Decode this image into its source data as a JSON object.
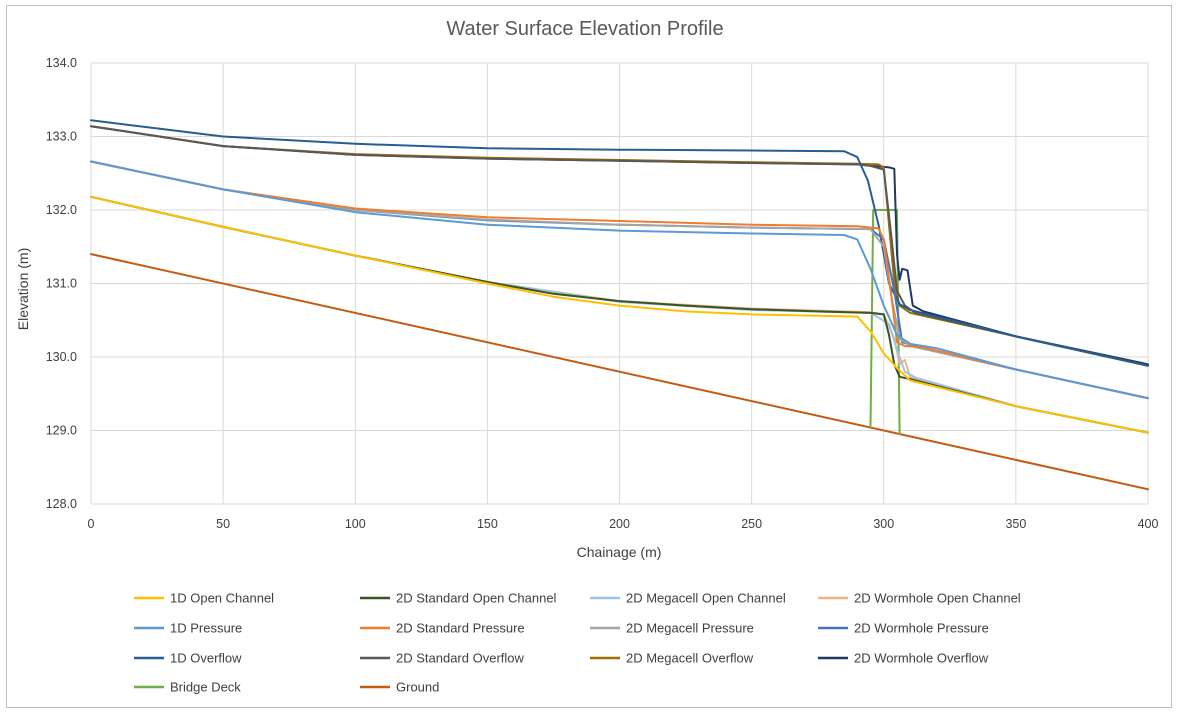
{
  "chart_data": {
    "type": "line",
    "title": "Water Surface Elevation Profile",
    "xlabel": "Chainage (m)",
    "ylabel": "Elevation (m)",
    "xlim": [
      0,
      400
    ],
    "ylim": [
      128.0,
      134.0
    ],
    "x_ticks": [
      "0",
      "50",
      "100",
      "150",
      "200",
      "250",
      "300",
      "350",
      "400"
    ],
    "y_ticks": [
      "128.0",
      "129.0",
      "130.0",
      "131.0",
      "132.0",
      "133.0",
      "134.0"
    ],
    "grid": true,
    "legend_position": "bottom",
    "series": [
      {
        "name": "1D Open Channel",
        "color": "#FFC000",
        "points": [
          [
            0,
            132.18
          ],
          [
            50,
            131.77
          ],
          [
            100,
            131.38
          ],
          [
            150,
            131.0
          ],
          [
            175,
            130.82
          ],
          [
            200,
            130.7
          ],
          [
            225,
            130.62
          ],
          [
            250,
            130.58
          ],
          [
            275,
            130.56
          ],
          [
            290,
            130.55
          ],
          [
            295,
            130.35
          ],
          [
            300,
            130.05
          ],
          [
            305,
            129.85
          ],
          [
            310,
            129.68
          ],
          [
            350,
            129.33
          ],
          [
            400,
            128.97
          ]
        ]
      },
      {
        "name": "2D Standard Open Channel",
        "color": "#375623",
        "points": [
          [
            0,
            132.18
          ],
          [
            50,
            131.77
          ],
          [
            100,
            131.38
          ],
          [
            150,
            131.02
          ],
          [
            175,
            130.86
          ],
          [
            200,
            130.76
          ],
          [
            225,
            130.7
          ],
          [
            250,
            130.65
          ],
          [
            275,
            130.62
          ],
          [
            295,
            130.6
          ],
          [
            300,
            130.58
          ],
          [
            302,
            130.3
          ],
          [
            304,
            129.9
          ],
          [
            306,
            129.73
          ],
          [
            310,
            129.7
          ],
          [
            350,
            129.33
          ],
          [
            400,
            128.97
          ]
        ]
      },
      {
        "name": "2D Megacell Open Channel",
        "color": "#9DC3E6",
        "points": [
          [
            0,
            132.18
          ],
          [
            50,
            131.77
          ],
          [
            100,
            131.38
          ],
          [
            150,
            131.02
          ],
          [
            200,
            130.75
          ],
          [
            250,
            130.64
          ],
          [
            295,
            130.6
          ],
          [
            302,
            130.45
          ],
          [
            305,
            130.1
          ],
          [
            308,
            129.8
          ],
          [
            312,
            129.72
          ],
          [
            350,
            129.33
          ],
          [
            400,
            128.97
          ]
        ]
      },
      {
        "name": "2D Wormhole Open Channel",
        "color": "#F4B183",
        "points": [
          [
            0,
            132.18
          ],
          [
            50,
            131.77
          ],
          [
            100,
            131.38
          ],
          [
            150,
            131.02
          ],
          [
            200,
            130.76
          ],
          [
            250,
            130.66
          ],
          [
            295,
            130.61
          ],
          [
            300,
            130.58
          ],
          [
            304,
            130.25
          ],
          [
            306,
            129.9
          ],
          [
            308,
            129.96
          ],
          [
            310,
            129.72
          ],
          [
            350,
            129.33
          ],
          [
            400,
            128.97
          ]
        ]
      },
      {
        "name": "1D Pressure",
        "color": "#5B9BD5",
        "points": [
          [
            0,
            132.66
          ],
          [
            50,
            132.28
          ],
          [
            100,
            131.97
          ],
          [
            150,
            131.8
          ],
          [
            200,
            131.72
          ],
          [
            250,
            131.68
          ],
          [
            285,
            131.66
          ],
          [
            290,
            131.6
          ],
          [
            295,
            131.2
          ],
          [
            300,
            130.7
          ],
          [
            305,
            130.3
          ],
          [
            310,
            130.18
          ],
          [
            320,
            130.12
          ],
          [
            350,
            129.83
          ],
          [
            400,
            129.44
          ]
        ]
      },
      {
        "name": "2D Standard Pressure",
        "color": "#ED7D31",
        "points": [
          [
            0,
            132.66
          ],
          [
            50,
            132.28
          ],
          [
            100,
            132.02
          ],
          [
            150,
            131.9
          ],
          [
            200,
            131.85
          ],
          [
            250,
            131.8
          ],
          [
            290,
            131.78
          ],
          [
            298,
            131.75
          ],
          [
            300,
            131.6
          ],
          [
            303,
            130.8
          ],
          [
            305,
            130.2
          ],
          [
            308,
            130.15
          ],
          [
            315,
            130.13
          ],
          [
            350,
            129.83
          ],
          [
            400,
            129.44
          ]
        ]
      },
      {
        "name": "2D Megacell Pressure",
        "color": "#A5A5A5",
        "points": [
          [
            0,
            132.66
          ],
          [
            50,
            132.28
          ],
          [
            100,
            132.0
          ],
          [
            150,
            131.87
          ],
          [
            200,
            131.8
          ],
          [
            250,
            131.76
          ],
          [
            295,
            131.74
          ],
          [
            300,
            131.5
          ],
          [
            303,
            130.8
          ],
          [
            306,
            130.25
          ],
          [
            310,
            130.15
          ],
          [
            350,
            129.83
          ],
          [
            400,
            129.44
          ]
        ]
      },
      {
        "name": "2D Wormhole Pressure",
        "color": "#4472C4",
        "points": [
          [
            0,
            132.66
          ],
          [
            50,
            132.28
          ],
          [
            100,
            132.0
          ],
          [
            150,
            131.86
          ],
          [
            200,
            131.8
          ],
          [
            250,
            131.76
          ],
          [
            295,
            131.74
          ],
          [
            300,
            131.6
          ],
          [
            304,
            130.9
          ],
          [
            307,
            130.2
          ],
          [
            312,
            130.15
          ],
          [
            350,
            129.83
          ],
          [
            400,
            129.44
          ]
        ]
      },
      {
        "name": "1D Overflow",
        "color": "#255E91",
        "points": [
          [
            0,
            133.22
          ],
          [
            50,
            133.0
          ],
          [
            100,
            132.9
          ],
          [
            150,
            132.84
          ],
          [
            200,
            132.82
          ],
          [
            250,
            132.81
          ],
          [
            285,
            132.8
          ],
          [
            290,
            132.72
          ],
          [
            294,
            132.4
          ],
          [
            298,
            131.8
          ],
          [
            302,
            131.0
          ],
          [
            306,
            130.72
          ],
          [
            310,
            130.64
          ],
          [
            350,
            130.28
          ],
          [
            400,
            129.88
          ]
        ]
      },
      {
        "name": "2D Standard Overflow",
        "color": "#595959",
        "points": [
          [
            0,
            133.14
          ],
          [
            50,
            132.87
          ],
          [
            100,
            132.75
          ],
          [
            150,
            132.7
          ],
          [
            200,
            132.67
          ],
          [
            250,
            132.64
          ],
          [
            290,
            132.62
          ],
          [
            295,
            132.6
          ],
          [
            300,
            132.55
          ],
          [
            303,
            131.6
          ],
          [
            305,
            130.9
          ],
          [
            308,
            130.7
          ],
          [
            312,
            130.6
          ],
          [
            350,
            130.28
          ],
          [
            400,
            129.88
          ]
        ]
      },
      {
        "name": "2D Megacell Overflow",
        "color": "#9E6E00",
        "points": [
          [
            0,
            133.14
          ],
          [
            50,
            132.87
          ],
          [
            100,
            132.76
          ],
          [
            150,
            132.71
          ],
          [
            200,
            132.68
          ],
          [
            250,
            132.65
          ],
          [
            290,
            132.63
          ],
          [
            298,
            132.62
          ],
          [
            300,
            132.58
          ],
          [
            302,
            131.8
          ],
          [
            304,
            131.0
          ],
          [
            306,
            130.7
          ],
          [
            310,
            130.6
          ],
          [
            350,
            130.28
          ],
          [
            400,
            129.88
          ]
        ]
      },
      {
        "name": "2D Wormhole Overflow",
        "color": "#203864",
        "points": [
          [
            0,
            133.14
          ],
          [
            50,
            132.87
          ],
          [
            100,
            132.75
          ],
          [
            150,
            132.7
          ],
          [
            200,
            132.67
          ],
          [
            250,
            132.64
          ],
          [
            290,
            132.62
          ],
          [
            296,
            132.6
          ],
          [
            302,
            132.58
          ],
          [
            304,
            132.56
          ],
          [
            305,
            131.4
          ],
          [
            306,
            131.05
          ],
          [
            307,
            131.2
          ],
          [
            309,
            131.18
          ],
          [
            311,
            130.7
          ],
          [
            315,
            130.62
          ],
          [
            350,
            130.28
          ],
          [
            400,
            129.9
          ]
        ]
      },
      {
        "name": "Bridge Deck",
        "color": "#70AD47",
        "points": [
          [
            295,
            129.05
          ],
          [
            296,
            132.0
          ],
          [
            305,
            132.0
          ],
          [
            306,
            128.95
          ]
        ]
      },
      {
        "name": "Ground",
        "color": "#C55A11",
        "points": [
          [
            0,
            131.4
          ],
          [
            400,
            128.2
          ]
        ]
      }
    ]
  }
}
